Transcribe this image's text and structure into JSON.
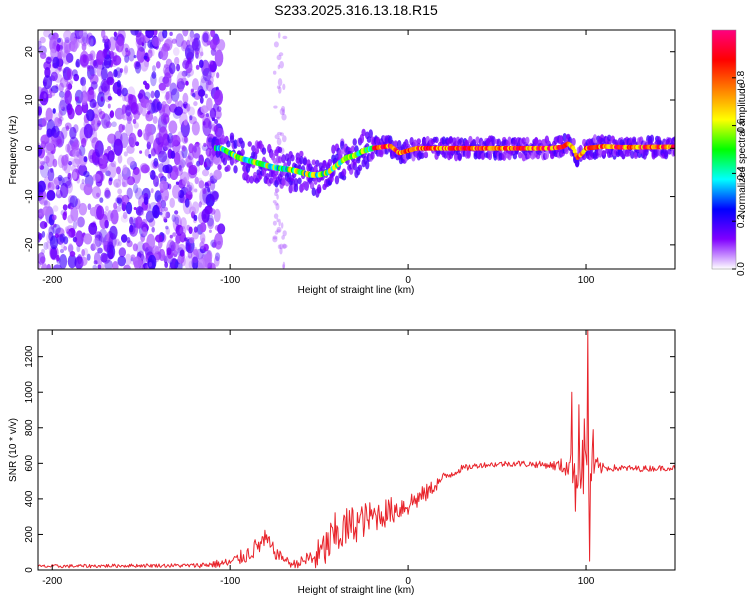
{
  "title": "S233.2025.316.13.18.R15",
  "spectrogram": {
    "xlabel": "Height of straight line (km)",
    "ylabel": "Frequency (Hz)",
    "xlim": [
      -208,
      150
    ],
    "ylim": [
      -25,
      24.5
    ],
    "xticks": [
      -200,
      -100,
      0,
      100
    ],
    "yticks": [
      -20,
      -10,
      0,
      10,
      20
    ],
    "ridge": [
      [
        -105,
        0
      ],
      [
        -95,
        -2
      ],
      [
        -85,
        -3
      ],
      [
        -75,
        -4
      ],
      [
        -65,
        -4.5
      ],
      [
        -55,
        -5.5
      ],
      [
        -50,
        -5.5
      ],
      [
        -45,
        -5
      ],
      [
        -40,
        -3.5
      ],
      [
        -35,
        -2
      ],
      [
        -30,
        -1.5
      ],
      [
        -25,
        -0.5
      ],
      [
        -20,
        0
      ],
      [
        -10,
        0.5
      ],
      [
        -5,
        -1
      ],
      [
        0,
        -0.5
      ],
      [
        5,
        0
      ],
      [
        20,
        0
      ],
      [
        40,
        0
      ],
      [
        60,
        0
      ],
      [
        80,
        0
      ],
      [
        87,
        0.3
      ],
      [
        90,
        1
      ],
      [
        93,
        0
      ],
      [
        95,
        -2
      ],
      [
        98,
        -1
      ],
      [
        100,
        0
      ],
      [
        110,
        0.4
      ],
      [
        120,
        0.2
      ],
      [
        150,
        0.3
      ]
    ],
    "noise_range": [
      -208,
      -105
    ],
    "colorbar": {
      "label": "Normalized spectral amplitude",
      "range": [
        0,
        1
      ],
      "ticks": [
        0.0,
        0.2,
        0.4,
        0.6,
        0.8
      ],
      "tick_labels": [
        "0.0",
        "0.2",
        "0.4",
        "0.6",
        "0.8"
      ],
      "stops": [
        "#ffffff",
        "#8000ff",
        "#0000ff",
        "#00ffff",
        "#00ff00",
        "#ffff00",
        "#ff8000",
        "#ff0000",
        "#ff0080"
      ]
    }
  },
  "chart_data": {
    "type": "line",
    "title": "S233.2025.316.13.18.R15",
    "xlabel": "Height of straight line (km)",
    "ylabel": "SNR (10 * v/v)",
    "xlim": [
      -208,
      150
    ],
    "ylim": [
      0,
      1350
    ],
    "xticks": [
      -200,
      -100,
      0,
      100
    ],
    "yticks": [
      0,
      200,
      400,
      600,
      800,
      1000,
      1200
    ],
    "color": "#e8242b",
    "envelope": [
      [
        -208,
        20
      ],
      [
        -150,
        25
      ],
      [
        -120,
        25
      ],
      [
        -100,
        40
      ],
      [
        -90,
        90
      ],
      [
        -80,
        170
      ],
      [
        -75,
        100
      ],
      [
        -65,
        30
      ],
      [
        -50,
        80
      ],
      [
        -40,
        200
      ],
      [
        -30,
        260
      ],
      [
        -20,
        300
      ],
      [
        -10,
        330
      ],
      [
        0,
        370
      ],
      [
        10,
        430
      ],
      [
        20,
        520
      ],
      [
        30,
        570
      ],
      [
        40,
        590
      ],
      [
        60,
        600
      ],
      [
        80,
        590
      ],
      [
        90,
        580
      ],
      [
        100,
        570
      ],
      [
        110,
        575
      ],
      [
        130,
        570
      ],
      [
        150,
        575
      ]
    ],
    "amplitude": [
      [
        -208,
        10
      ],
      [
        -150,
        10
      ],
      [
        -120,
        12
      ],
      [
        -100,
        30
      ],
      [
        -90,
        50
      ],
      [
        -80,
        60
      ],
      [
        -70,
        20
      ],
      [
        -60,
        30
      ],
      [
        -50,
        100
      ],
      [
        -40,
        140
      ],
      [
        -30,
        110
      ],
      [
        -20,
        90
      ],
      [
        -10,
        80
      ],
      [
        0,
        70
      ],
      [
        10,
        50
      ],
      [
        20,
        30
      ],
      [
        30,
        20
      ],
      [
        40,
        15
      ],
      [
        80,
        20
      ],
      [
        90,
        60
      ],
      [
        100,
        200
      ],
      [
        105,
        80
      ],
      [
        110,
        20
      ],
      [
        150,
        15
      ]
    ],
    "spikes": [
      {
        "x": 92,
        "y": 1000
      },
      {
        "x": 94,
        "y": 330
      },
      {
        "x": 96,
        "y": 930
      },
      {
        "x": 99,
        "y": 850
      },
      {
        "x": 101,
        "y": 1350
      },
      {
        "x": 102,
        "y": 50
      },
      {
        "x": 104,
        "y": 790
      }
    ]
  }
}
